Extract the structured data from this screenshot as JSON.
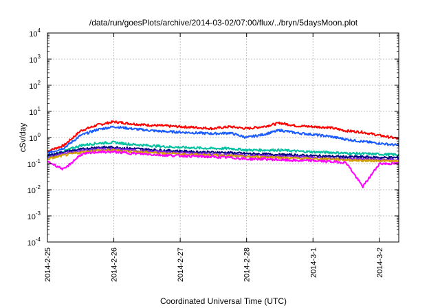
{
  "chart_data": {
    "type": "line",
    "title": "/data/run/goesPlots/archive/2014-03-02/07:00/flux/../bryn/5daysMoon.plot",
    "xlabel": "Coordinated Universal Time (UTC)",
    "ylabel": "cSv/day",
    "yscale": "log",
    "ylim": [
      0.0001,
      10000
    ],
    "xlim": [
      "2014-02-25 00:00",
      "2014-03-02 07:00"
    ],
    "grid": true,
    "x_ticks": [
      "2014-2-25",
      "2014-2-26",
      "2014-2-27",
      "2014-2-28",
      "2014-3-1",
      "2014-3-2"
    ],
    "y_ticks": [
      {
        "base": "10",
        "exp": "-4"
      },
      {
        "base": "10",
        "exp": "-3"
      },
      {
        "base": "10",
        "exp": "-2"
      },
      {
        "base": "10",
        "exp": "-1"
      },
      {
        "base": "10",
        "exp": "0"
      },
      {
        "base": "10",
        "exp": "1"
      },
      {
        "base": "10",
        "exp": "2"
      },
      {
        "base": "10",
        "exp": "3"
      },
      {
        "base": "10",
        "exp": "4"
      }
    ],
    "x": [
      "2014-02-25 00:00",
      "2014-02-25 06:00",
      "2014-02-25 12:00",
      "2014-02-25 18:00",
      "2014-02-26 00:00",
      "2014-02-26 06:00",
      "2014-02-26 12:00",
      "2014-02-26 18:00",
      "2014-02-27 00:00",
      "2014-02-27 06:00",
      "2014-02-27 12:00",
      "2014-02-27 18:00",
      "2014-02-28 00:00",
      "2014-02-28 06:00",
      "2014-02-28 12:00",
      "2014-02-28 18:00",
      "2014-03-01 00:00",
      "2014-03-01 06:00",
      "2014-03-01 12:00",
      "2014-03-01 18:00",
      "2014-03-02 00:00",
      "2014-03-02 07:00"
    ],
    "series": [
      {
        "color": "#ff0000",
        "values": [
          0.3,
          0.5,
          1.8,
          3.0,
          4.0,
          3.4,
          3.0,
          2.8,
          2.6,
          2.4,
          2.2,
          2.6,
          2.2,
          2.6,
          3.6,
          2.8,
          2.6,
          2.4,
          1.8,
          1.6,
          1.2,
          0.9
        ]
      },
      {
        "color": "#1a5cff",
        "values": [
          0.25,
          0.4,
          1.2,
          2.0,
          2.6,
          2.2,
          1.9,
          1.7,
          1.6,
          1.5,
          1.4,
          1.5,
          1.0,
          1.3,
          1.9,
          1.5,
          1.3,
          1.1,
          0.85,
          0.7,
          0.6,
          0.5
        ]
      },
      {
        "color": "#00c0a0",
        "values": [
          0.18,
          0.3,
          0.5,
          0.6,
          0.65,
          0.55,
          0.5,
          0.45,
          0.42,
          0.4,
          0.38,
          0.38,
          0.33,
          0.33,
          0.33,
          0.3,
          0.28,
          0.27,
          0.25,
          0.24,
          0.23,
          0.22
        ]
      },
      {
        "color": "#000080",
        "values": [
          0.2,
          0.28,
          0.35,
          0.42,
          0.42,
          0.38,
          0.35,
          0.32,
          0.3,
          0.28,
          0.27,
          0.26,
          0.24,
          0.23,
          0.22,
          0.21,
          0.2,
          0.19,
          0.18,
          0.18,
          0.17,
          0.17
        ]
      },
      {
        "color": "#8a2be2",
        "values": [
          0.17,
          0.24,
          0.3,
          0.36,
          0.36,
          0.33,
          0.3,
          0.28,
          0.26,
          0.24,
          0.23,
          0.22,
          0.2,
          0.2,
          0.19,
          0.18,
          0.17,
          0.16,
          0.15,
          0.15,
          0.14,
          0.14
        ]
      },
      {
        "color": "#d2a000",
        "values": [
          0.15,
          0.21,
          0.27,
          0.32,
          0.32,
          0.29,
          0.27,
          0.25,
          0.23,
          0.22,
          0.21,
          0.2,
          0.18,
          0.18,
          0.17,
          0.16,
          0.15,
          0.15,
          0.14,
          0.13,
          0.13,
          0.12
        ]
      },
      {
        "color": "#ff00ff",
        "values": [
          0.12,
          0.06,
          0.22,
          0.28,
          0.28,
          0.25,
          0.23,
          0.21,
          0.2,
          0.19,
          0.18,
          0.17,
          0.15,
          0.15,
          0.14,
          0.13,
          0.13,
          0.12,
          0.11,
          0.013,
          0.1,
          0.1
        ]
      }
    ]
  }
}
